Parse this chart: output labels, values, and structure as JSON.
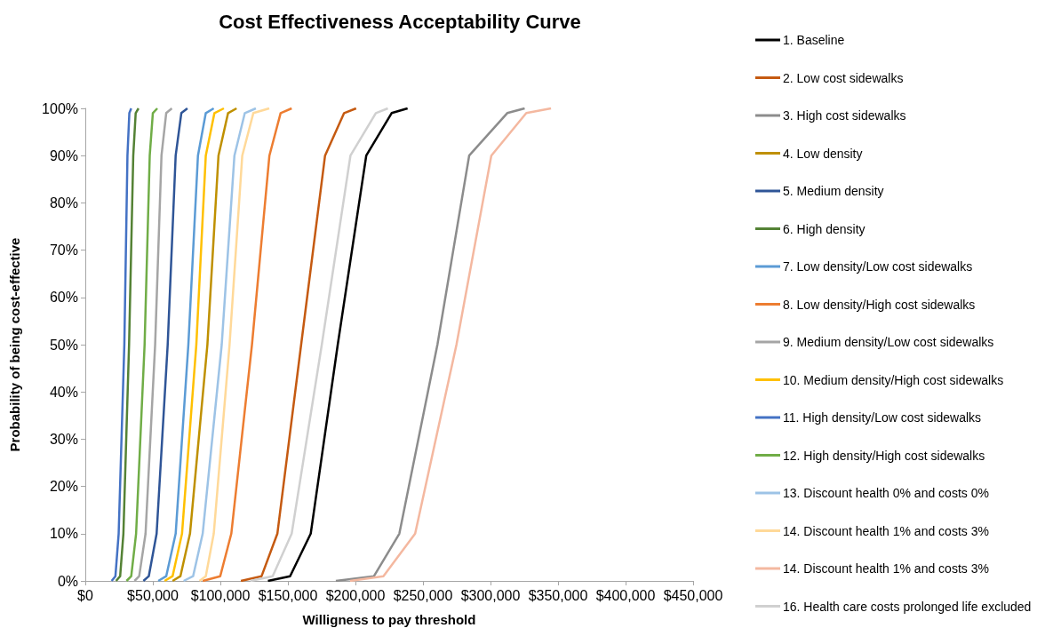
{
  "chart_data": {
    "type": "line",
    "title": "Cost Effectiveness Acceptability Curve",
    "xlabel": "Willigness to pay threshold",
    "ylabel": "Probability of being cost-effective",
    "xlim": [
      0,
      450000
    ],
    "xticks": [
      {
        "value": 0,
        "label": "$0"
      },
      {
        "value": 50000,
        "label": "$50,000"
      },
      {
        "value": 100000,
        "label": "$100,000"
      },
      {
        "value": 150000,
        "label": "$150,000"
      },
      {
        "value": 200000,
        "label": "$200,000"
      },
      {
        "value": 250000,
        "label": "$250,000"
      },
      {
        "value": 300000,
        "label": "$300,000"
      },
      {
        "value": 350000,
        "label": "$350,000"
      },
      {
        "value": 400000,
        "label": "$400,000"
      },
      {
        "value": 450000,
        "label": "$450,000"
      }
    ],
    "ylim": [
      0,
      100
    ],
    "yticks": [
      {
        "value": 0,
        "label": "0%"
      },
      {
        "value": 10,
        "label": "10%"
      },
      {
        "value": 20,
        "label": "20%"
      },
      {
        "value": 30,
        "label": "30%"
      },
      {
        "value": 40,
        "label": "40%"
      },
      {
        "value": 50,
        "label": "50%"
      },
      {
        "value": 60,
        "label": "60%"
      },
      {
        "value": 70,
        "label": "70%"
      },
      {
        "value": 80,
        "label": "80%"
      },
      {
        "value": 90,
        "label": "90%"
      },
      {
        "value": 100,
        "label": "100%"
      }
    ],
    "grid": false,
    "legend": "right",
    "series": [
      {
        "name": "1. Baseline",
        "color": "#000000",
        "x": [
          135200,
          151600,
          166900,
          186900,
          208000,
          226800,
          238600
        ],
        "values": [
          0,
          1,
          10,
          50,
          90,
          99,
          100
        ]
      },
      {
        "name": "2. Low cost sidewalks",
        "color": "#c55a11",
        "x": [
          115200,
          130500,
          142200,
          159800,
          177500,
          191600,
          200500
        ],
        "values": [
          0,
          1,
          10,
          50,
          90,
          99,
          100
        ]
      },
      {
        "name": "3. High cost sidewalks",
        "color": "#8c8c8c",
        "x": [
          185500,
          213700,
          232500,
          260700,
          284200,
          312400,
          325300
        ],
        "values": [
          0,
          1,
          10,
          50,
          90,
          99,
          100
        ]
      },
      {
        "name": "4. Low density",
        "color": "#bf9000",
        "x": [
          64600,
          70400,
          77500,
          90400,
          98600,
          105700,
          112000
        ],
        "values": [
          0,
          1,
          10,
          50,
          90,
          99,
          100
        ]
      },
      {
        "name": "5. Medium density",
        "color": "#2f5597",
        "x": [
          43000,
          47000,
          52800,
          61000,
          66900,
          71100,
          75600
        ],
        "values": [
          0,
          1,
          10,
          50,
          90,
          99,
          100
        ]
      },
      {
        "name": "6. High density",
        "color": "#548235",
        "x": [
          22800,
          25800,
          28200,
          32400,
          35500,
          37300,
          39400
        ],
        "values": [
          0,
          1,
          10,
          50,
          90,
          99,
          100
        ]
      },
      {
        "name": "7. Low density/Low cost sidewalks",
        "color": "#5b9bd5",
        "x": [
          54000,
          59900,
          66900,
          76300,
          83400,
          89200,
          95100
        ],
        "values": [
          0,
          1,
          10,
          50,
          90,
          99,
          100
        ]
      },
      {
        "name": "8. Low density/High cost sidewalks",
        "color": "#ed7d31",
        "x": [
          86900,
          99900,
          108100,
          123400,
          136300,
          144600,
          152800
        ],
        "values": [
          0,
          1,
          10,
          50,
          90,
          99,
          100
        ]
      },
      {
        "name": "9. Medium density/Low cost sidewalks",
        "color": "#a5a5a5",
        "x": [
          36400,
          39900,
          44600,
          51700,
          56400,
          59900,
          64100
        ],
        "values": [
          0,
          1,
          10,
          50,
          90,
          99,
          100
        ]
      },
      {
        "name": "10. Medium density/High cost sidewalks",
        "color": "#ffc000",
        "x": [
          58700,
          64600,
          71600,
          82200,
          89200,
          95600,
          102600
        ],
        "values": [
          0,
          1,
          10,
          50,
          90,
          99,
          100
        ]
      },
      {
        "name": "11. High density/Low cost sidewalks",
        "color": "#4472c4",
        "x": [
          19500,
          22300,
          24700,
          28900,
          31200,
          32600,
          34000
        ],
        "values": [
          0,
          1,
          10,
          50,
          90,
          99,
          100
        ]
      },
      {
        "name": "12. High density/High cost sidewalks",
        "color": "#70ad47",
        "x": [
          30500,
          34000,
          37600,
          43900,
          47700,
          50000,
          53300
        ],
        "values": [
          0,
          1,
          10,
          50,
          90,
          99,
          100
        ]
      },
      {
        "name": "13. Discount health 0% and costs 0%",
        "color": "#9dc3e6",
        "x": [
          72800,
          79800,
          86900,
          101000,
          110400,
          118100,
          126300
        ],
        "values": [
          0,
          1,
          10,
          50,
          90,
          99,
          100
        ]
      },
      {
        "name": "14. Discount health 1% and costs 3%",
        "color": "#ffd999",
        "x": [
          84500,
          89200,
          95100,
          106800,
          116200,
          124400,
          136200
        ],
        "values": [
          0,
          1,
          10,
          50,
          90,
          99,
          100
        ]
      },
      {
        "name": "14. Discount health 1% and costs 3%",
        "color": "#f4b8a0",
        "x": [
          196000,
          220700,
          244200,
          274800,
          300600,
          326500,
          344800
        ],
        "values": [
          0,
          1,
          10,
          50,
          90,
          99,
          100
        ]
      },
      {
        "name": "16. Health care costs prolonged life excluded",
        "color": "#d0d0d0",
        "x": [
          122200,
          138700,
          152800,
          175100,
          196300,
          215100,
          224000
        ],
        "values": [
          0,
          1,
          10,
          50,
          90,
          99,
          100
        ]
      }
    ]
  }
}
